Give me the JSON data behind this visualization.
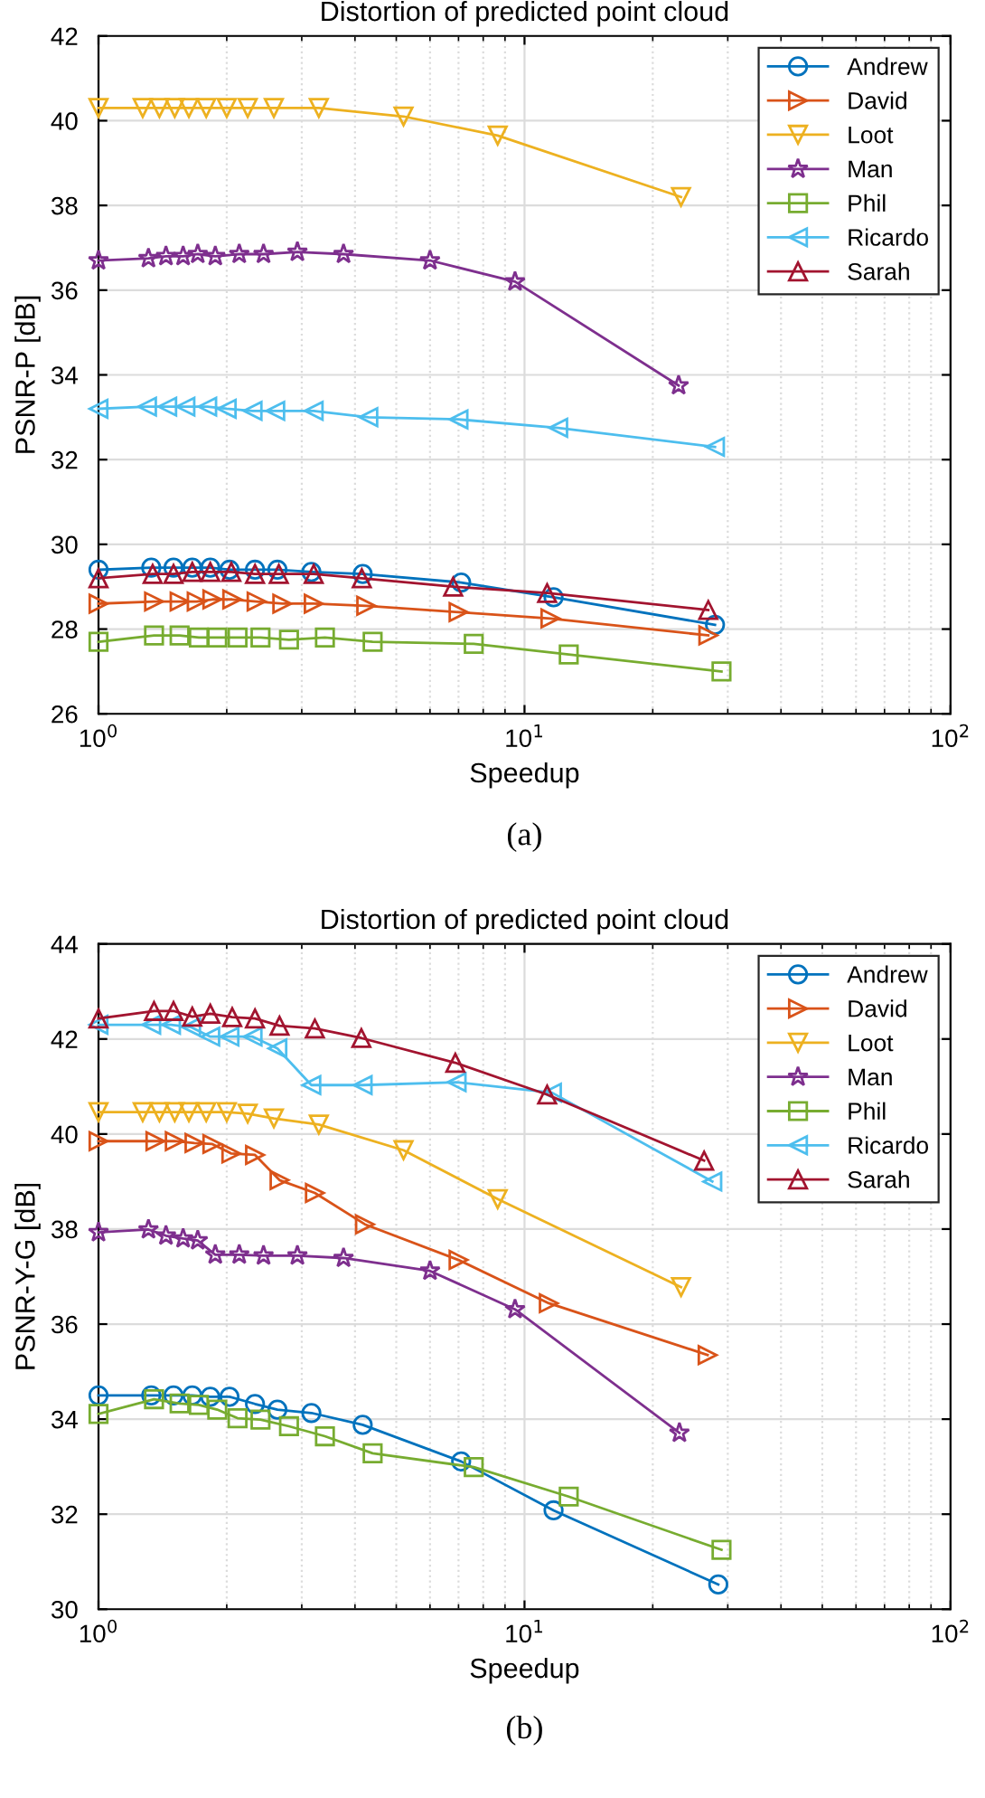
{
  "chart_data": [
    {
      "type": "line",
      "title": "Distortion of predicted point cloud",
      "xlabel": "Speedup",
      "ylabel": "PSNR-P [dB]",
      "log": "x",
      "xlim": [
        1,
        100
      ],
      "xticks": [
        {
          "value": 1,
          "label": "10$^{0}$"
        },
        {
          "value": 10,
          "label": "10$^{1}$"
        },
        {
          "value": 100,
          "label": "10$^{2}$"
        }
      ],
      "ylim": [
        26,
        42
      ],
      "yticks": [
        26,
        28,
        30,
        32,
        34,
        36,
        38,
        40,
        42
      ],
      "grid": true,
      "legend": "top right",
      "line_style": "solid",
      "annotations": [
        "(a)"
      ],
      "series": [
        {
          "name": "Andrew",
          "color": "#0072bd",
          "marker": "circle",
          "x": [
            1.0,
            1.33,
            1.5,
            1.66,
            1.83,
            2.03,
            2.33,
            2.63,
            3.16,
            4.17,
            7.1,
            11.7,
            28
          ],
          "values": [
            29.4,
            29.45,
            29.45,
            29.45,
            29.45,
            29.4,
            29.4,
            29.4,
            29.35,
            29.3,
            29.1,
            28.75,
            28.1
          ]
        },
        {
          "name": "David",
          "color": "#d95319",
          "marker": "triangle-right",
          "x": [
            1.0,
            1.35,
            1.55,
            1.7,
            1.85,
            2.06,
            2.35,
            2.7,
            3.2,
            4.25,
            7.0,
            11.5,
            27
          ],
          "values": [
            28.6,
            28.65,
            28.65,
            28.65,
            28.7,
            28.7,
            28.65,
            28.6,
            28.6,
            28.55,
            28.4,
            28.25,
            27.85
          ]
        },
        {
          "name": "Loot",
          "color": "#edb120",
          "marker": "triangle-down",
          "x": [
            1.0,
            1.27,
            1.39,
            1.51,
            1.63,
            1.79,
            2.0,
            2.24,
            2.58,
            3.29,
            5.2,
            8.65,
            23.3
          ],
          "values": [
            40.3,
            40.3,
            40.3,
            40.3,
            40.3,
            40.3,
            40.3,
            40.3,
            40.3,
            40.3,
            40.1,
            39.65,
            38.2
          ]
        },
        {
          "name": "Man",
          "color": "#7e2f8e",
          "marker": "star",
          "x": [
            1.0,
            1.31,
            1.44,
            1.58,
            1.71,
            1.88,
            2.14,
            2.44,
            2.93,
            3.76,
            6.0,
            9.5,
            23
          ],
          "values": [
            36.7,
            36.75,
            36.8,
            36.8,
            36.85,
            36.8,
            36.85,
            36.85,
            36.9,
            36.85,
            36.7,
            36.2,
            33.75
          ]
        },
        {
          "name": "Phil",
          "color": "#77ac30",
          "marker": "square",
          "x": [
            1.0,
            1.35,
            1.55,
            1.72,
            1.9,
            2.12,
            2.4,
            2.8,
            3.4,
            4.4,
            7.6,
            12.7,
            29
          ],
          "values": [
            27.7,
            27.85,
            27.85,
            27.8,
            27.8,
            27.8,
            27.8,
            27.75,
            27.8,
            27.7,
            27.65,
            27.4,
            27.0
          ]
        },
        {
          "name": "Ricardo",
          "color": "#4dbeee",
          "marker": "triangle-left",
          "x": [
            1.0,
            1.3,
            1.45,
            1.6,
            1.8,
            2.0,
            2.3,
            2.6,
            3.2,
            4.3,
            7.0,
            12,
            28
          ],
          "values": [
            33.2,
            33.25,
            33.25,
            33.25,
            33.25,
            33.2,
            33.15,
            33.15,
            33.15,
            33.0,
            32.95,
            32.75,
            32.3
          ]
        },
        {
          "name": "Sarah",
          "color": "#a2142f",
          "marker": "triangle",
          "x": [
            1.0,
            1.34,
            1.5,
            1.66,
            1.83,
            2.05,
            2.33,
            2.65,
            3.2,
            4.15,
            6.8,
            11.3,
            27
          ],
          "values": [
            29.2,
            29.3,
            29.3,
            29.35,
            29.35,
            29.35,
            29.3,
            29.3,
            29.3,
            29.2,
            29.0,
            28.85,
            28.45
          ]
        }
      ]
    },
    {
      "type": "line",
      "title": "Distortion of predicted point cloud",
      "xlabel": "Speedup",
      "ylabel": "PSNR-Y-G [dB]",
      "log": "x",
      "xlim": [
        1,
        100
      ],
      "xticks": [
        {
          "value": 1,
          "label": "10$^{0}$"
        },
        {
          "value": 10,
          "label": "10$^{1}$"
        },
        {
          "value": 100,
          "label": "10$^{2}$"
        }
      ],
      "ylim": [
        30,
        44
      ],
      "yticks": [
        30,
        32,
        34,
        36,
        38,
        40,
        42,
        44
      ],
      "grid": true,
      "legend": "top right",
      "line_style": "solid",
      "annotations": [
        "(b)"
      ],
      "series": [
        {
          "name": "Andrew",
          "color": "#0072bd",
          "marker": "circle",
          "x": [
            1.0,
            1.33,
            1.5,
            1.66,
            1.83,
            2.03,
            2.33,
            2.63,
            3.16,
            4.17,
            7.1,
            11.7,
            28.5
          ],
          "values": [
            34.5,
            34.5,
            34.5,
            34.5,
            34.47,
            34.47,
            34.32,
            34.2,
            34.13,
            33.88,
            33.11,
            32.08,
            30.52
          ]
        },
        {
          "name": "David",
          "color": "#d95319",
          "marker": "triangle-right",
          "x": [
            1.0,
            1.36,
            1.51,
            1.68,
            1.85,
            2.05,
            2.33,
            2.66,
            3.22,
            4.22,
            7.0,
            11.4,
            26.9
          ],
          "values": [
            39.85,
            39.85,
            39.85,
            39.81,
            39.79,
            39.59,
            39.56,
            39.03,
            38.76,
            38.1,
            37.35,
            36.44,
            35.35
          ]
        },
        {
          "name": "Loot",
          "color": "#edb120",
          "marker": "triangle-down",
          "x": [
            1.0,
            1.27,
            1.39,
            1.51,
            1.63,
            1.79,
            2.0,
            2.24,
            2.58,
            3.29,
            5.2,
            8.65,
            23.3
          ],
          "values": [
            40.46,
            40.46,
            40.46,
            40.46,
            40.46,
            40.46,
            40.46,
            40.43,
            40.33,
            40.2,
            39.66,
            38.63,
            36.78
          ]
        },
        {
          "name": "Man",
          "color": "#7e2f8e",
          "marker": "star",
          "x": [
            1.0,
            1.31,
            1.44,
            1.58,
            1.71,
            1.88,
            2.14,
            2.44,
            2.93,
            3.76,
            6.0,
            9.5,
            23.1
          ],
          "values": [
            37.93,
            37.99,
            37.86,
            37.8,
            37.76,
            37.46,
            37.46,
            37.44,
            37.44,
            37.39,
            37.12,
            36.31,
            33.71
          ]
        },
        {
          "name": "Phil",
          "color": "#77ac30",
          "marker": "square",
          "x": [
            1.0,
            1.35,
            1.55,
            1.72,
            1.9,
            2.12,
            2.4,
            2.8,
            3.4,
            4.4,
            7.6,
            12.7,
            29
          ],
          "values": [
            34.11,
            34.42,
            34.33,
            34.3,
            34.2,
            34.02,
            33.99,
            33.85,
            33.64,
            33.28,
            32.99,
            32.37,
            31.25
          ]
        },
        {
          "name": "Ricardo",
          "color": "#4dbeee",
          "marker": "triangle-left",
          "x": [
            1.0,
            1.33,
            1.48,
            1.65,
            1.83,
            2.03,
            2.3,
            2.63,
            3.16,
            4.17,
            6.93,
            11.6,
            27.6
          ],
          "values": [
            42.3,
            42.3,
            42.3,
            42.25,
            42.05,
            42.05,
            42.05,
            41.8,
            41.03,
            41.03,
            41.09,
            40.87,
            39.0
          ]
        },
        {
          "name": "Sarah",
          "color": "#a2142f",
          "marker": "triangle",
          "x": [
            1.0,
            1.35,
            1.5,
            1.66,
            1.83,
            2.06,
            2.33,
            2.66,
            3.22,
            4.14,
            6.88,
            11.3,
            26.4
          ],
          "values": [
            42.43,
            42.59,
            42.59,
            42.47,
            42.53,
            42.46,
            42.43,
            42.28,
            42.22,
            42.02,
            41.5,
            40.83,
            39.44
          ]
        }
      ]
    }
  ]
}
